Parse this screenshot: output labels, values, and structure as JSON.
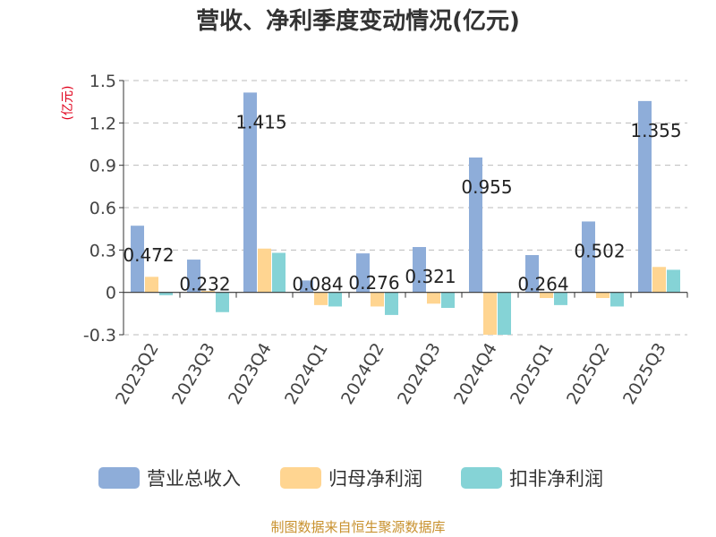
{
  "chart_data": {
    "type": "bar",
    "title": "营收、净利季度变动情况(亿元)",
    "ylabel": "(亿元)",
    "xlabel": "",
    "ylim": [
      -0.3,
      1.5
    ],
    "yticks": [
      "1.5",
      "1.2",
      "0.9",
      "0.6",
      "0.3",
      "0",
      "-0.3"
    ],
    "ytick_values": [
      1.5,
      1.2,
      0.9,
      0.6,
      0.3,
      0,
      -0.3
    ],
    "grid": true,
    "legend_position": "bottom",
    "categories": [
      "2023Q2",
      "2023Q3",
      "2023Q4",
      "2024Q1",
      "2024Q2",
      "2024Q3",
      "2024Q4",
      "2025Q1",
      "2025Q2",
      "2025Q3"
    ],
    "data_labels": [
      "0.472",
      "0.232",
      "1.415",
      "0.084",
      "0.276",
      "0.321",
      "0.955",
      "0.264",
      "0.502",
      "1.355"
    ],
    "series": [
      {
        "name": "营业总收入",
        "color": "#8eadd9",
        "values": [
          0.472,
          0.232,
          1.415,
          0.084,
          0.276,
          0.321,
          0.955,
          0.264,
          0.502,
          1.355
        ]
      },
      {
        "name": "归母净利润",
        "color": "#ffd591",
        "values": [
          0.11,
          0.01,
          0.31,
          -0.09,
          -0.1,
          -0.08,
          -0.3,
          -0.04,
          -0.04,
          0.18
        ]
      },
      {
        "name": "扣非净利润",
        "color": "#85d3d6",
        "values": [
          -0.02,
          -0.14,
          0.28,
          -0.1,
          -0.16,
          -0.11,
          -0.3,
          -0.09,
          -0.1,
          0.16
        ]
      }
    ]
  },
  "source_note": "制图数据来自恒生聚源数据库"
}
